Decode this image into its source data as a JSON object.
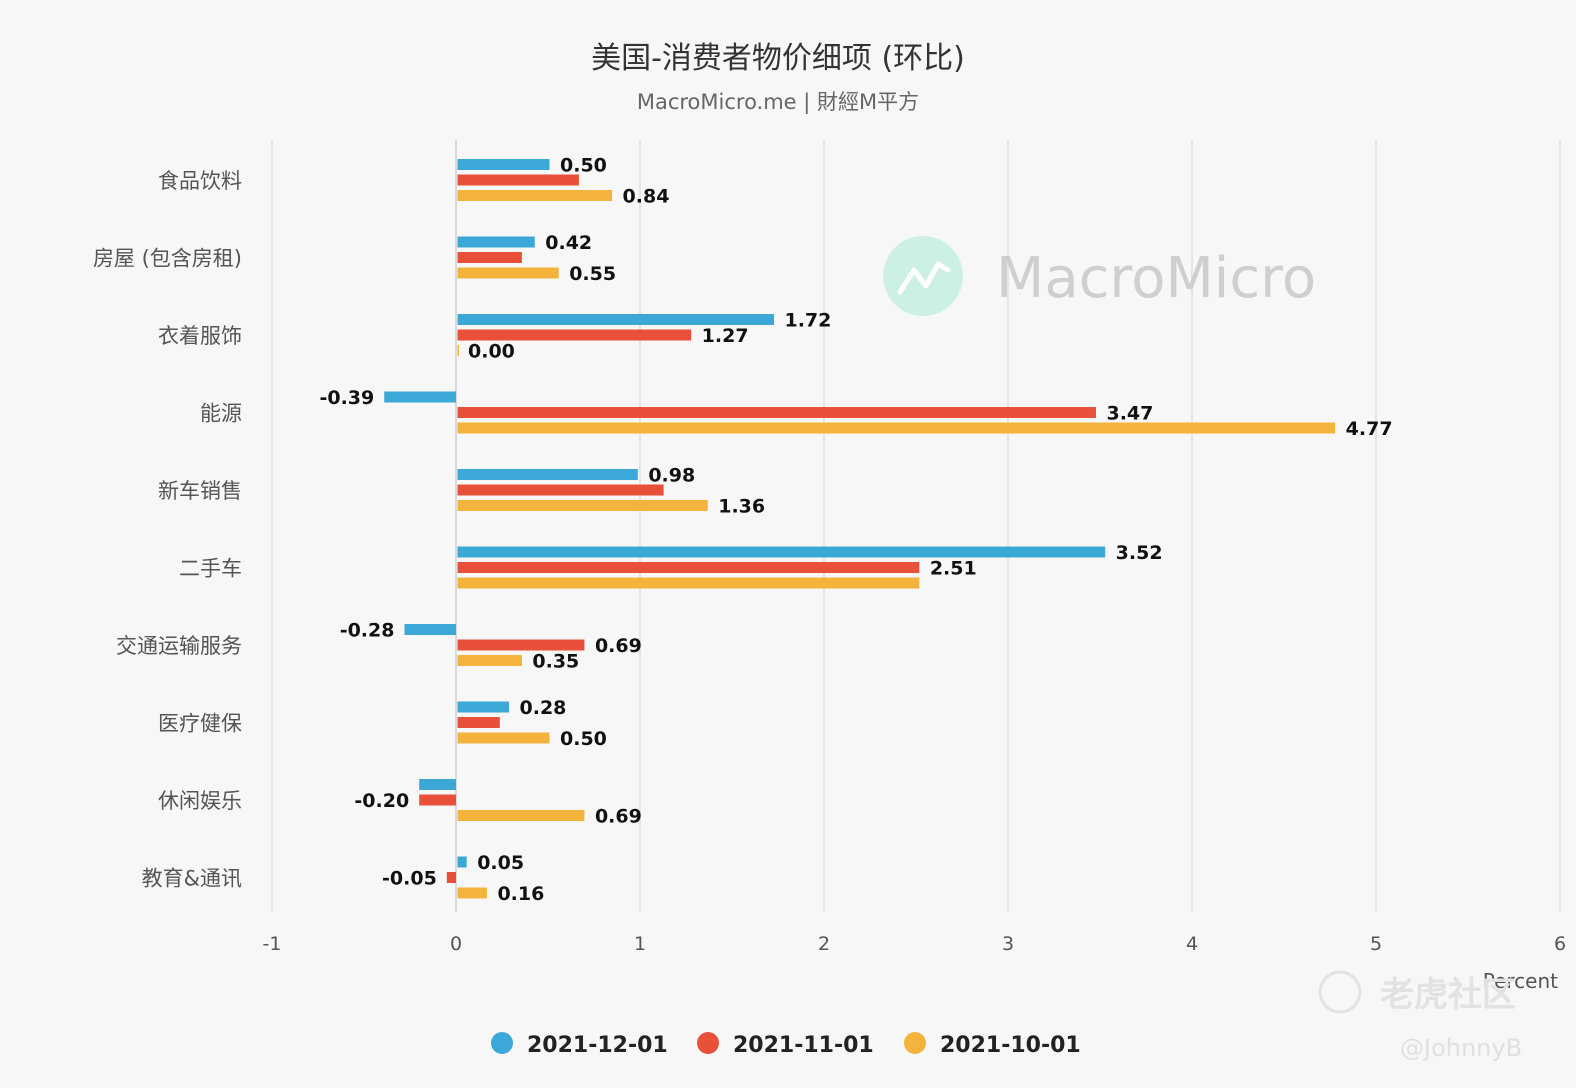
{
  "chart_data": {
    "type": "bar",
    "orientation": "horizontal",
    "title": "美国-消费者物价细项 (环比)",
    "subtitle": "MacroMicro.me | 財經M平方",
    "xlabel": "Percent",
    "xlim": [
      -1,
      6
    ],
    "xticks": [
      "-1",
      "0",
      "1",
      "2",
      "3",
      "4",
      "5",
      "6"
    ],
    "categories": [
      "食品饮料",
      "房屋 (包含房租)",
      "衣着服饰",
      "能源",
      "新车销售",
      "二手车",
      "交通运输服务",
      "医疗健保",
      "休闲娱乐",
      "教育&通讯"
    ],
    "series": [
      {
        "name": "2021-12-01",
        "color": "#3ba8d8",
        "values": [
          0.5,
          0.42,
          1.72,
          -0.39,
          0.98,
          3.52,
          -0.28,
          0.28,
          -0.2,
          0.05
        ],
        "labels": [
          "0.50",
          "0.42",
          "1.72",
          "-0.39",
          "0.98",
          "3.52",
          "-0.28",
          "0.28",
          "",
          "0.05"
        ]
      },
      {
        "name": "2021-11-01",
        "color": "#e8503a",
        "values": [
          0.66,
          0.35,
          1.27,
          3.47,
          1.12,
          2.51,
          0.69,
          0.23,
          -0.2,
          -0.05
        ],
        "labels": [
          "",
          "",
          "1.27",
          "3.47",
          "",
          "2.51",
          "0.69",
          "",
          "-0.20",
          "-0.05"
        ]
      },
      {
        "name": "2021-10-01",
        "color": "#f4b33d",
        "values": [
          0.84,
          0.55,
          0.0,
          4.77,
          1.36,
          2.51,
          0.35,
          0.5,
          0.69,
          0.16
        ],
        "labels": [
          "0.84",
          "0.55",
          "0.00",
          "4.77",
          "1.36",
          "",
          "0.35",
          "0.50",
          "0.69",
          "0.16"
        ]
      }
    ],
    "legend_position": "bottom"
  },
  "watermarks": {
    "brand": "MacroMicro",
    "community": "老虎社区",
    "author": "@JohnnyB"
  }
}
